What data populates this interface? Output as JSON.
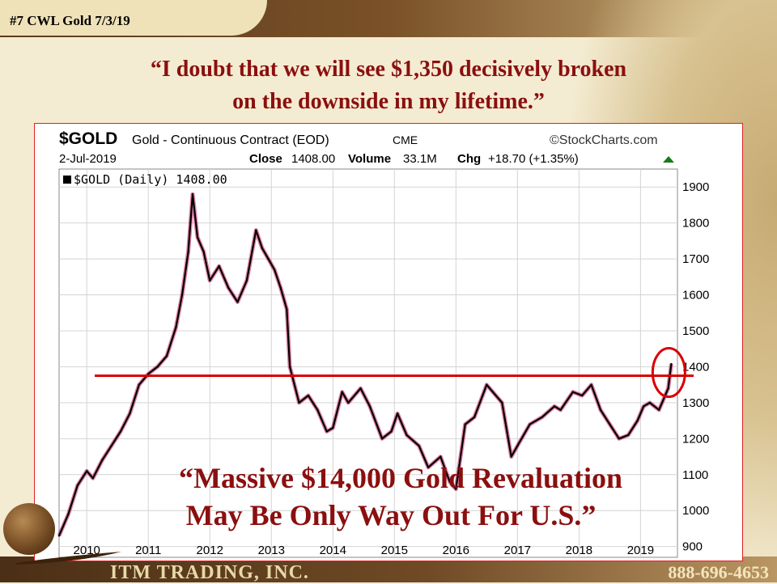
{
  "slide": {
    "id_label": "#7 CWL Gold 7/3/19",
    "quote_line1": "“I doubt that we will see $1,350 decisively broken",
    "quote_line2": "on the downside in my lifetime.”",
    "company": "ITM TRADING, INC.",
    "phone": "888-696-4653",
    "colors": {
      "quote": "#8b0f0f",
      "accent": "#d80000",
      "band": "#6f4a25"
    }
  },
  "chart_header": {
    "symbol": "$GOLD",
    "name": "Gold - Continuous Contract (EOD)",
    "exchange": "CME",
    "source": "©StockCharts.com",
    "date": "2-Jul-2019",
    "close_label": "Close",
    "close_value": "1408.00",
    "volume_label": "Volume",
    "volume_value": "33.1M",
    "chg_label": "Chg",
    "chg_value": "+18.70 (+1.35%)",
    "legend": "$GOLD (Daily) 1408.00"
  },
  "chart_data": {
    "type": "line",
    "title": "$GOLD (Daily) 1408.00",
    "xlim": [
      2009.55,
      2019.6
    ],
    "ylim": [
      870,
      1950
    ],
    "x_ticks": [
      "2010",
      "2011",
      "2012",
      "2013",
      "2014",
      "2015",
      "2016",
      "2017",
      "2018",
      "2019"
    ],
    "y_ticks": [
      900,
      1000,
      1100,
      1200,
      1300,
      1400,
      1500,
      1600,
      1700,
      1800,
      1900
    ],
    "grid": true,
    "series": [
      {
        "x": [
          2009.55,
          2009.7,
          2009.85,
          2010.0,
          2010.1,
          2010.25,
          2010.4,
          2010.55,
          2010.7,
          2010.85,
          2011.0,
          2011.15,
          2011.3,
          2011.45,
          2011.55,
          2011.65,
          2011.72,
          2011.8,
          2011.9,
          2012.0,
          2012.15,
          2012.3,
          2012.45,
          2012.6,
          2012.75,
          2012.85,
          2012.95,
          2013.05,
          2013.15,
          2013.25,
          2013.3,
          2013.45,
          2013.6,
          2013.75,
          2013.9,
          2014.0,
          2014.15,
          2014.25,
          2014.45,
          2014.6,
          2014.8,
          2014.95,
          2015.05,
          2015.2,
          2015.4,
          2015.55,
          2015.75,
          2015.9,
          2016.0,
          2016.15,
          2016.3,
          2016.5,
          2016.6,
          2016.75,
          2016.9,
          2017.0,
          2017.2,
          2017.4,
          2017.6,
          2017.7,
          2017.9,
          2018.05,
          2018.2,
          2018.35,
          2018.5,
          2018.65,
          2018.8,
          2018.95,
          2019.05,
          2019.15,
          2019.3,
          2019.45,
          2019.5
        ],
        "y": [
          930,
          990,
          1070,
          1110,
          1090,
          1140,
          1180,
          1220,
          1270,
          1350,
          1380,
          1400,
          1430,
          1510,
          1600,
          1720,
          1880,
          1760,
          1720,
          1640,
          1680,
          1620,
          1580,
          1640,
          1780,
          1730,
          1700,
          1670,
          1620,
          1560,
          1400,
          1300,
          1320,
          1280,
          1220,
          1230,
          1330,
          1300,
          1340,
          1290,
          1200,
          1220,
          1270,
          1210,
          1180,
          1120,
          1150,
          1080,
          1060,
          1240,
          1260,
          1350,
          1330,
          1300,
          1150,
          1180,
          1240,
          1260,
          1290,
          1280,
          1330,
          1320,
          1350,
          1280,
          1240,
          1200,
          1210,
          1250,
          1290,
          1300,
          1280,
          1340,
          1408
        ]
      }
    ],
    "reference_line": {
      "y": 1375,
      "color": "#d80000"
    },
    "highlight_circle": {
      "x": 2019.46,
      "y": 1375,
      "color": "#d80000"
    }
  },
  "overlay": {
    "line1": "“Massive $14,000 Gold Revaluation",
    "line2": "May Be Only Way Out For U.S.”"
  }
}
